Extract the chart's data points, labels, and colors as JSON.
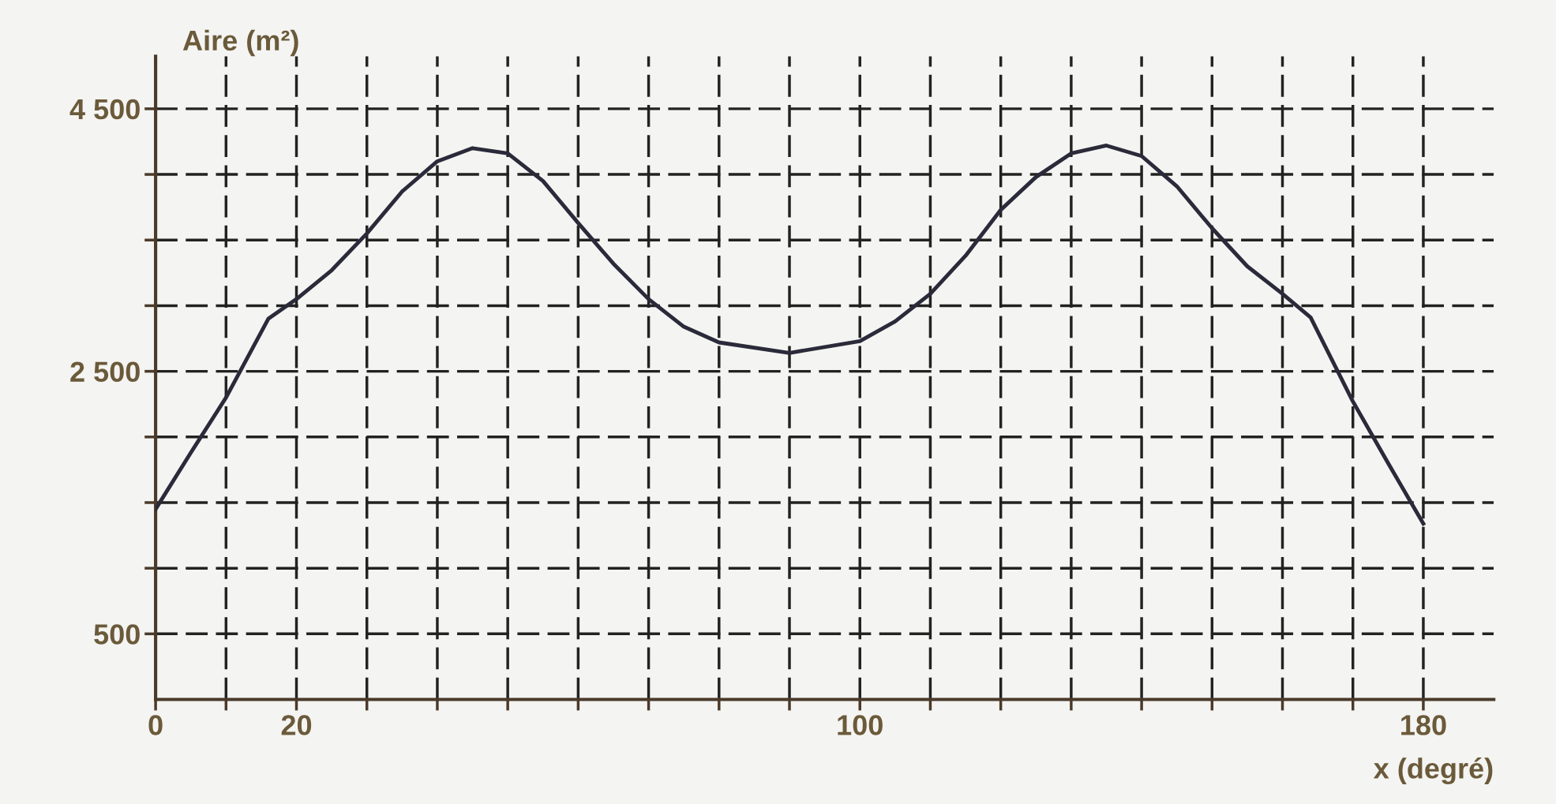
{
  "chart_data": {
    "type": "line",
    "xlabel": "x (degré)",
    "ylabel": "Aire (m²)",
    "xlim": [
      0,
      190
    ],
    "ylim": [
      0,
      4900
    ],
    "xticks": [
      0,
      {
        "value": 10,
        "label": null
      },
      20,
      {
        "value": 30,
        "label": null
      },
      {
        "value": 40,
        "label": null
      },
      {
        "value": 50,
        "label": null
      },
      {
        "value": 60,
        "label": null
      },
      {
        "value": 70,
        "label": null
      },
      {
        "value": 80,
        "label": null
      },
      {
        "value": 90,
        "label": null
      },
      100,
      {
        "value": 110,
        "label": null
      },
      {
        "value": 120,
        "label": null
      },
      {
        "value": 130,
        "label": null
      },
      {
        "value": 140,
        "label": null
      },
      {
        "value": 150,
        "label": null
      },
      {
        "value": 160,
        "label": null
      },
      {
        "value": 170,
        "label": null
      },
      180
    ],
    "yticks": [
      {
        "value": 500,
        "label": "500"
      },
      {
        "value": 1000,
        "label": null
      },
      {
        "value": 1500,
        "label": null
      },
      {
        "value": 2000,
        "label": null
      },
      {
        "value": 2500,
        "label": "2 500"
      },
      {
        "value": 3000,
        "label": null
      },
      {
        "value": 3500,
        "label": null
      },
      {
        "value": 4000,
        "label": null
      },
      {
        "value": 4500,
        "label": "4 500"
      }
    ],
    "grid": true,
    "marker": "none",
    "line_style": "solid",
    "series": [
      {
        "color": "#2a2a3a",
        "x": [
          0,
          5,
          10,
          16,
          20,
          25,
          30,
          35,
          40,
          45,
          50,
          55,
          60,
          65,
          70,
          75,
          80,
          90,
          100,
          105,
          110,
          115,
          120,
          125,
          130,
          135,
          140,
          145,
          150,
          155,
          160,
          164,
          170,
          175,
          180
        ],
        "values": [
          1450,
          1880,
          2300,
          2900,
          3050,
          3270,
          3550,
          3870,
          4100,
          4200,
          4160,
          3950,
          3630,
          3320,
          3050,
          2840,
          2720,
          2640,
          2730,
          2880,
          3090,
          3380,
          3730,
          3980,
          4160,
          4220,
          4140,
          3910,
          3590,
          3300,
          3090,
          2910,
          2270,
          1800,
          1340
        ]
      }
    ]
  }
}
